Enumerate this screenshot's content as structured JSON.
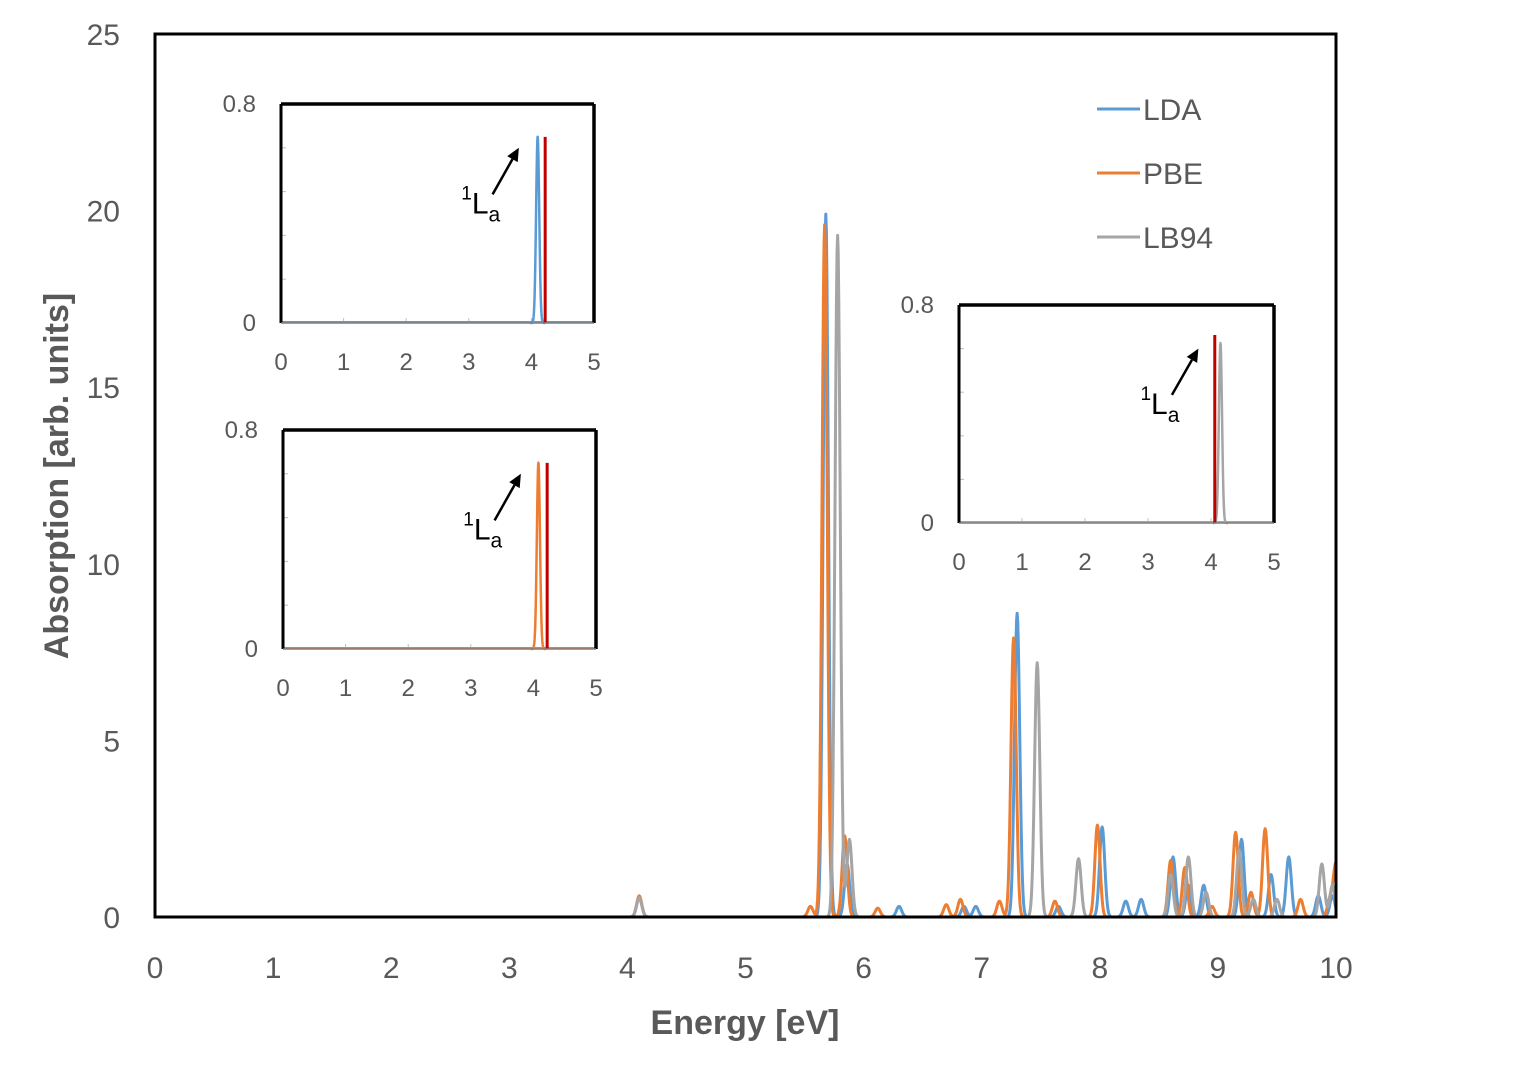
{
  "chart_data": {
    "type": "line",
    "xlabel": "Energy [eV]",
    "ylabel": "Absorption [arb. units]",
    "xlim": [
      0,
      10
    ],
    "ylim": [
      0,
      25
    ],
    "x_ticks": [
      "0",
      "1",
      "2",
      "3",
      "4",
      "5",
      "6",
      "7",
      "8",
      "9",
      "10"
    ],
    "y_ticks": [
      "0",
      "5",
      "10",
      "15",
      "20",
      "25"
    ],
    "grid": false,
    "legend_position": "top-right",
    "series": [
      {
        "name": "LDA",
        "color": "#5B9BD5",
        "peaks": [
          [
            4.1,
            0.55
          ],
          [
            5.68,
            19.9
          ],
          [
            5.86,
            1.5
          ],
          [
            6.3,
            0.3
          ],
          [
            6.85,
            0.3
          ],
          [
            6.95,
            0.3
          ],
          [
            7.3,
            8.6
          ],
          [
            7.65,
            0.3
          ],
          [
            8.02,
            2.55
          ],
          [
            8.22,
            0.45
          ],
          [
            8.35,
            0.5
          ],
          [
            8.62,
            1.7
          ],
          [
            8.75,
            0.9
          ],
          [
            8.88,
            0.9
          ],
          [
            9.2,
            2.2
          ],
          [
            9.45,
            1.2
          ],
          [
            9.6,
            1.7
          ],
          [
            9.85,
            0.6
          ],
          [
            9.97,
            0.6
          ]
        ]
      },
      {
        "name": "PBE",
        "color": "#ED7D31",
        "peaks": [
          [
            4.1,
            0.6
          ],
          [
            5.55,
            0.3
          ],
          [
            5.67,
            19.6
          ],
          [
            5.84,
            2.3
          ],
          [
            6.12,
            0.25
          ],
          [
            6.7,
            0.35
          ],
          [
            6.82,
            0.5
          ],
          [
            7.15,
            0.45
          ],
          [
            7.27,
            7.9
          ],
          [
            7.62,
            0.45
          ],
          [
            7.98,
            2.6
          ],
          [
            8.6,
            1.6
          ],
          [
            8.72,
            1.4
          ],
          [
            8.95,
            0.3
          ],
          [
            9.15,
            2.4
          ],
          [
            9.28,
            0.7
          ],
          [
            9.4,
            2.5
          ],
          [
            9.7,
            0.5
          ],
          [
            9.95,
            0.5
          ],
          [
            10.0,
            1.5
          ]
        ]
      },
      {
        "name": "LB94",
        "color": "#A5A5A5",
        "peaks": [
          [
            4.1,
            0.55
          ],
          [
            5.78,
            19.3
          ],
          [
            5.88,
            2.2
          ],
          [
            7.47,
            7.2
          ],
          [
            7.82,
            1.65
          ],
          [
            8.6,
            1.2
          ],
          [
            8.75,
            1.7
          ],
          [
            8.9,
            0.7
          ],
          [
            9.18,
            1.9
          ],
          [
            9.3,
            0.5
          ],
          [
            9.5,
            0.5
          ],
          [
            9.88,
            1.5
          ],
          [
            9.97,
            0.9
          ]
        ]
      }
    ],
    "insets": [
      {
        "id": "lda",
        "xlim": [
          0,
          5
        ],
        "ylim": [
          0,
          0.8
        ],
        "x_ticks": [
          "0",
          "1",
          "2",
          "3",
          "4",
          "5"
        ],
        "y_ticks": [
          "0",
          "0.8"
        ],
        "lines": [
          {
            "color": "#5B9BD5",
            "shape": "gaussian",
            "x": 4.1,
            "height": 0.68
          },
          {
            "color": "#C00000",
            "shape": "stick",
            "x": 4.22,
            "height": 0.68
          }
        ],
        "annotation": {
          "sup": "1",
          "main": "L",
          "sub": "a"
        }
      },
      {
        "id": "pbe",
        "xlim": [
          0,
          5
        ],
        "ylim": [
          0,
          0.8
        ],
        "x_ticks": [
          "0",
          "1",
          "2",
          "3",
          "4",
          "5"
        ],
        "y_ticks": [
          "0",
          "0.8"
        ],
        "lines": [
          {
            "color": "#ED7D31",
            "shape": "gaussian",
            "x": 4.08,
            "height": 0.68
          },
          {
            "color": "#C00000",
            "shape": "stick",
            "x": 4.22,
            "height": 0.68
          }
        ],
        "annotation": {
          "sup": "1",
          "main": "L",
          "sub": "a"
        }
      },
      {
        "id": "lb94",
        "xlim": [
          0,
          5
        ],
        "ylim": [
          0,
          0.8
        ],
        "x_ticks": [
          "0",
          "1",
          "2",
          "3",
          "4",
          "5"
        ],
        "y_ticks": [
          "0",
          "0.8"
        ],
        "lines": [
          {
            "color": "#A5A5A5",
            "shape": "gaussian",
            "x": 4.15,
            "height": 0.66
          },
          {
            "color": "#C00000",
            "shape": "stick",
            "x": 4.06,
            "height": 0.69
          }
        ],
        "annotation": {
          "sup": "1",
          "main": "L",
          "sub": "a"
        }
      }
    ]
  }
}
